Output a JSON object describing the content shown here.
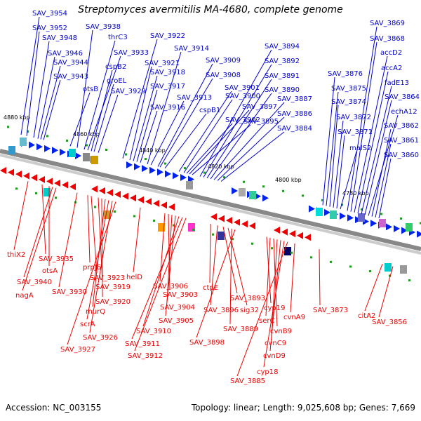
{
  "title": "Streptomyces avermitilis MA-4680, complete genome",
  "footer": {
    "accession": "Accession: NC_003155",
    "summary": "Topology: linear; Length: 9,025,608 bp; Genes: 7,669"
  },
  "colors": {
    "top_label": "#0000cc",
    "bottom_label": "#ee0000",
    "forward": "#0022ee",
    "reverse": "#ee0000",
    "axis": "#888888"
  },
  "scale_labels": [
    "4880 kbp",
    "4860 kbp",
    "4840 kbp",
    "4820 kbp",
    "4800 kbp",
    "4780 kbp"
  ],
  "top_genes": [
    "SAV_3954",
    "SAV_3952",
    "SAV_3948",
    "SAV_3946",
    "SAV_3944",
    "SAV_3943",
    "otsB",
    "SAV_3938",
    "thrC3",
    "SAV_3933",
    "cspB2",
    "groEL",
    "SAV_3929",
    "SAV_3922",
    "SAV_3921",
    "SAV_3918",
    "SAV_3917",
    "SAV_3916",
    "SAV_3914",
    "SAV_3913",
    "SAV_3909",
    "SAV_3908",
    "cspB1",
    "SAV_3901",
    "SAV_3900",
    "SAV_3902",
    "SAV_3897",
    "SAV_3895",
    "SAV_3894",
    "SAV_3892",
    "SAV_3891",
    "SAV_3890",
    "SAV_3887",
    "SAV_3886",
    "SAV_3884",
    "SAV_3876",
    "SAV_3875",
    "SAV_3874",
    "SAV_3872",
    "SAV_3871",
    "malS2",
    "SAV_3869",
    "SAV_3868",
    "accD2",
    "accA2",
    "fadE13",
    "SAV_3864",
    "echA12",
    "SAV_3862",
    "SAV_3861",
    "SAV_3860"
  ],
  "bottom_genes": [
    "thiX2",
    "SAV_3935",
    "otsA",
    "SAV_3940",
    "nagA",
    "prpJ6",
    "SAV_3930",
    "SAV_3923",
    "SAV_3919",
    "SAV_3920",
    "murQ",
    "scrA",
    "SAV_3926",
    "SAV_3927",
    "helD",
    "SAV_3906",
    "SAV_3903",
    "SAV_3904",
    "SAV_3905",
    "SAV_3910",
    "SAV_3911",
    "SAV_3912",
    "ctpE",
    "SAV_3896",
    "SAV_3893",
    "sig32",
    "SAV_3889",
    "SAV_3898",
    "cyp19",
    "serC",
    "cvnB9",
    "cvnC9",
    "cvnD9",
    "cyp18",
    "SAV_3885",
    "cvnA9",
    "SAV_3873",
    "citA2",
    "SAV_3856"
  ]
}
